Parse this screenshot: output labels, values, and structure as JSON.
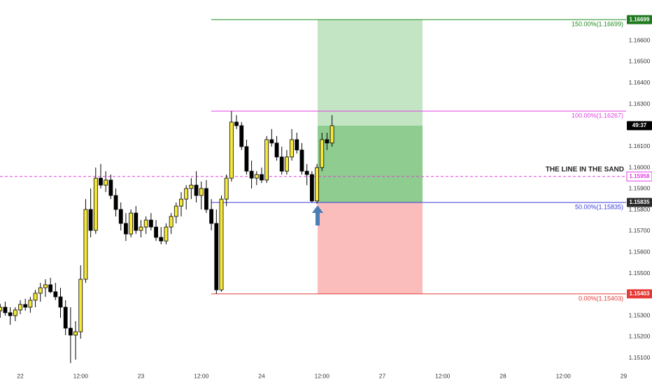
{
  "chart_data": {
    "type": "candlestick",
    "categories": [
      null,
      null,
      null,
      null,
      "22",
      null,
      null,
      null,
      null,
      null,
      null,
      null,
      null,
      null,
      null,
      null,
      "12:00",
      null,
      null,
      null,
      null,
      null,
      null,
      null,
      null,
      null,
      null,
      null,
      "23",
      null,
      null,
      null,
      null,
      null,
      null,
      null,
      null,
      null,
      null,
      null,
      "12:00",
      null,
      null,
      null,
      null,
      null,
      null,
      null,
      null,
      null,
      null,
      null,
      "24",
      null,
      null,
      null,
      null,
      null,
      null,
      null,
      null,
      null,
      null,
      null,
      "12:00",
      null,
      null,
      null,
      null,
      null,
      null,
      null,
      null,
      null,
      null,
      null,
      "27",
      null,
      null,
      null,
      null,
      null,
      null,
      null,
      null,
      null,
      null,
      null,
      "12:00",
      null,
      null,
      null,
      null,
      null,
      null,
      null,
      null,
      null,
      null,
      null,
      "28",
      null,
      null,
      null,
      null,
      null,
      null,
      null,
      null,
      null,
      null,
      null,
      "12:00",
      null,
      null,
      null,
      null,
      null,
      null,
      null,
      null,
      null,
      null,
      null,
      "29"
    ],
    "open": [
      1.15323,
      1.1534,
      1.15314,
      1.153,
      1.15327,
      1.15353,
      1.1534,
      1.15373,
      1.15406,
      1.15432,
      1.15446,
      1.15413,
      1.15389,
      1.1534,
      1.15241,
      1.15208,
      1.15224,
      1.15472,
      1.15802,
      1.15703,
      1.1595,
      1.15917,
      1.15941,
      1.15868,
      1.15802,
      1.15736,
      1.15686,
      1.15785,
      1.15703,
      1.15719,
      1.15752,
      1.15719,
      1.1567,
      1.15653,
      1.15719,
      1.15769,
      1.15818,
      1.15851,
      1.15901,
      1.15917,
      1.15868,
      1.15901,
      1.15802,
      1.15736,
      1.15422,
      1.15851,
      1.1595,
      1.16215,
      1.16198,
      1.16099,
      1.15983,
      1.1595,
      1.15967,
      1.15941,
      1.16132,
      1.16116,
      1.1605,
      1.15983,
      1.1605,
      1.16132,
      1.16083,
      1.15983,
      1.15967,
      1.15842,
      1.16,
      1.16132,
      1.16116,
      null,
      null,
      null,
      null,
      null,
      null,
      null,
      null,
      null,
      null,
      null,
      null,
      null,
      null,
      null,
      null,
      null,
      null,
      null,
      null,
      null,
      null,
      null,
      null,
      null,
      null,
      null,
      null,
      null,
      null,
      null,
      null,
      null,
      null,
      null,
      null,
      null,
      null,
      null,
      null,
      null,
      null,
      null,
      null,
      null,
      null,
      null,
      null,
      null,
      null,
      null,
      null,
      null,
      null,
      null,
      null,
      null,
      null
    ],
    "high": [
      1.15356,
      1.15366,
      1.1534,
      1.1534,
      1.15373,
      1.1538,
      1.15389,
      1.15422,
      1.15455,
      1.15472,
      1.15479,
      1.15455,
      1.15432,
      1.15373,
      1.1534,
      1.15274,
      1.15538,
      1.15851,
      1.15901,
      1.16,
      1.16017,
      1.15983,
      1.15967,
      1.15901,
      1.15835,
      1.15785,
      1.15802,
      1.15818,
      1.15752,
      1.15769,
      1.15785,
      1.15752,
      1.15719,
      1.15736,
      1.15785,
      1.15835,
      1.15884,
      1.15917,
      1.1595,
      1.15983,
      1.15934,
      1.15941,
      1.15851,
      1.15802,
      1.15868,
      1.15967,
      1.16267,
      1.16248,
      1.16215,
      1.16132,
      1.16033,
      1.15983,
      1.16,
      1.16149,
      1.16182,
      1.16149,
      1.16099,
      1.16083,
      1.16182,
      1.16165,
      1.16116,
      1.16017,
      1.15983,
      1.16017,
      1.16165,
      1.16165,
      1.16248,
      null,
      null,
      null,
      null,
      null,
      null,
      null,
      null,
      null,
      null,
      null,
      null,
      null,
      null,
      null,
      null,
      null,
      null,
      null,
      null,
      null,
      null,
      null,
      null,
      null,
      null,
      null,
      null,
      null,
      null,
      null,
      null,
      null,
      null,
      null,
      null,
      null,
      null,
      null,
      null,
      null,
      null,
      null,
      null,
      null,
      null,
      null,
      null,
      null,
      null,
      null,
      null,
      null,
      null,
      null,
      null,
      null,
      null
    ],
    "low": [
      1.1529,
      1.153,
      1.15257,
      1.15274,
      1.15307,
      1.15323,
      1.15314,
      1.1534,
      1.15366,
      1.15389,
      1.15406,
      1.15373,
      1.1529,
      1.15208,
      1.15076,
      1.15092,
      1.15191,
      1.15455,
      1.1567,
      1.15686,
      1.15901,
      1.15884,
      1.15851,
      1.15769,
      1.15703,
      1.15653,
      1.1567,
      1.15686,
      1.1567,
      1.15686,
      1.15703,
      1.15653,
      1.15637,
      1.15637,
      1.15686,
      1.15736,
      1.15769,
      1.15802,
      1.15851,
      1.15835,
      1.15802,
      1.15785,
      1.15703,
      1.15403,
      1.15413,
      1.15818,
      1.15934,
      1.16182,
      1.16083,
      1.15967,
      1.15901,
      1.15917,
      1.15927,
      1.15927,
      1.16099,
      1.16033,
      1.15967,
      1.15967,
      1.16033,
      1.16066,
      1.15967,
      1.15917,
      1.15835,
      1.15828,
      1.15983,
      1.16083,
      1.16099,
      null,
      null,
      null,
      null,
      null,
      null,
      null,
      null,
      null,
      null,
      null,
      null,
      null,
      null,
      null,
      null,
      null,
      null,
      null,
      null,
      null,
      null,
      null,
      null,
      null,
      null,
      null,
      null,
      null,
      null,
      null,
      null,
      null,
      null,
      null,
      null,
      null,
      null,
      null,
      null,
      null,
      null,
      null,
      null,
      null,
      null,
      null,
      null,
      null,
      null,
      null,
      null,
      null,
      null,
      null,
      null,
      null,
      null
    ],
    "close": [
      1.1534,
      1.15314,
      1.153,
      1.15327,
      1.15353,
      1.1534,
      1.15373,
      1.15406,
      1.15432,
      1.15446,
      1.15413,
      1.15389,
      1.1534,
      1.15241,
      1.15208,
      1.15224,
      1.15472,
      1.15802,
      1.15703,
      1.1595,
      1.15917,
      1.15941,
      1.15868,
      1.15802,
      1.15736,
      1.15686,
      1.15785,
      1.15703,
      1.15719,
      1.15752,
      1.15719,
      1.1567,
      1.15653,
      1.15719,
      1.15769,
      1.15818,
      1.15851,
      1.15901,
      1.15917,
      1.15868,
      1.15901,
      1.15802,
      1.15736,
      1.15422,
      1.15851,
      1.1595,
      1.16215,
      1.16198,
      1.16099,
      1.15983,
      1.1595,
      1.15967,
      1.15941,
      1.16132,
      1.16116,
      1.1605,
      1.15983,
      1.1605,
      1.16132,
      1.16083,
      1.15983,
      1.15967,
      1.15842,
      1.16,
      1.16132,
      1.16116,
      1.16198,
      null,
      null,
      null,
      null,
      null,
      null,
      null,
      null,
      null,
      null,
      null,
      null,
      null,
      null,
      null,
      null,
      null,
      null,
      null,
      null,
      null,
      null,
      null,
      null,
      null,
      null,
      null,
      null,
      null,
      null,
      null,
      null,
      null,
      null,
      null,
      null,
      null,
      null,
      null,
      null,
      null,
      null,
      null,
      null,
      null,
      null,
      null,
      null,
      null,
      null,
      null,
      null,
      null,
      null,
      null,
      null,
      null,
      null
    ],
    "up_color": "#f7e93a",
    "down_color": "#000000",
    "ylim": [
      1.15043,
      1.16792
    ],
    "yticks": [
      {
        "value": 1.151,
        "label": "1.15100"
      },
      {
        "value": 1.152,
        "label": "1.15200"
      },
      {
        "value": 1.153,
        "label": "1.15300"
      },
      {
        "value": 1.155,
        "label": "1.15500"
      },
      {
        "value": 1.156,
        "label": "1.15600"
      },
      {
        "value": 1.157,
        "label": "1.15700"
      },
      {
        "value": 1.158,
        "label": "1.15800"
      },
      {
        "value": 1.159,
        "label": "1.15900"
      },
      {
        "value": 1.16,
        "label": "1.16000"
      },
      {
        "value": 1.161,
        "label": "1.16100"
      },
      {
        "value": 1.163,
        "label": "1.16300"
      },
      {
        "value": 1.164,
        "label": "1.16400"
      },
      {
        "value": 1.165,
        "label": "1.16500"
      },
      {
        "value": 1.166,
        "label": "1.16600"
      }
    ],
    "levels": [
      {
        "label": "150.00%(1.16699)",
        "value": 1.16699,
        "color": "#1f8a1f",
        "badge_color": "#1f7a1f"
      },
      {
        "label": "100.00%(1.16267)",
        "value": 1.16267,
        "color": "#e040e0"
      },
      {
        "label": "50.00%(1.15835)",
        "value": 1.15835,
        "color": "#3b3bdc",
        "badge_color": "#2b2b2b"
      },
      {
        "label": "0.00%(1.15403)",
        "value": 1.15403,
        "color": "#e53935",
        "badge_color": "#e53935"
      }
    ],
    "line_in_the_sand": {
      "label": "THE LINE IN THE SAND",
      "value": 1.15958,
      "color": "#e040e0"
    },
    "countdown": "49:37"
  }
}
